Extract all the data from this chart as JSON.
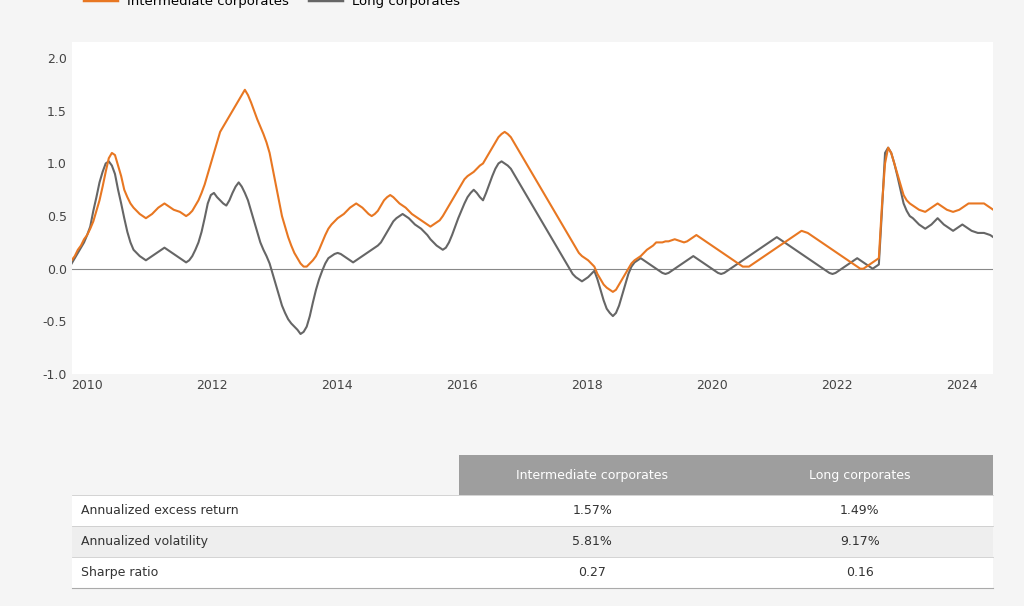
{
  "intermediate_corporates": [
    0.08,
    0.12,
    0.18,
    0.22,
    0.28,
    0.32,
    0.38,
    0.45,
    0.55,
    0.65,
    0.78,
    0.92,
    1.05,
    1.1,
    1.08,
    0.98,
    0.88,
    0.75,
    0.68,
    0.62,
    0.58,
    0.55,
    0.52,
    0.5,
    0.48,
    0.5,
    0.52,
    0.55,
    0.58,
    0.6,
    0.62,
    0.6,
    0.58,
    0.56,
    0.55,
    0.54,
    0.52,
    0.5,
    0.52,
    0.55,
    0.6,
    0.65,
    0.72,
    0.8,
    0.9,
    1.0,
    1.1,
    1.2,
    1.3,
    1.35,
    1.4,
    1.45,
    1.5,
    1.55,
    1.6,
    1.65,
    1.7,
    1.65,
    1.58,
    1.5,
    1.42,
    1.35,
    1.28,
    1.2,
    1.1,
    0.95,
    0.8,
    0.65,
    0.5,
    0.4,
    0.3,
    0.22,
    0.15,
    0.1,
    0.05,
    0.02,
    0.02,
    0.05,
    0.08,
    0.12,
    0.18,
    0.25,
    0.32,
    0.38,
    0.42,
    0.45,
    0.48,
    0.5,
    0.52,
    0.55,
    0.58,
    0.6,
    0.62,
    0.6,
    0.58,
    0.55,
    0.52,
    0.5,
    0.52,
    0.55,
    0.6,
    0.65,
    0.68,
    0.7,
    0.68,
    0.65,
    0.62,
    0.6,
    0.58,
    0.55,
    0.52,
    0.5,
    0.48,
    0.46,
    0.44,
    0.42,
    0.4,
    0.42,
    0.44,
    0.46,
    0.5,
    0.55,
    0.6,
    0.65,
    0.7,
    0.75,
    0.8,
    0.85,
    0.88,
    0.9,
    0.92,
    0.95,
    0.98,
    1.0,
    1.05,
    1.1,
    1.15,
    1.2,
    1.25,
    1.28,
    1.3,
    1.28,
    1.25,
    1.2,
    1.15,
    1.1,
    1.05,
    1.0,
    0.95,
    0.9,
    0.85,
    0.8,
    0.75,
    0.7,
    0.65,
    0.6,
    0.55,
    0.5,
    0.45,
    0.4,
    0.35,
    0.3,
    0.25,
    0.2,
    0.15,
    0.12,
    0.1,
    0.08,
    0.05,
    0.02,
    -0.05,
    -0.1,
    -0.15,
    -0.18,
    -0.2,
    -0.22,
    -0.2,
    -0.15,
    -0.1,
    -0.05,
    0.0,
    0.05,
    0.08,
    0.1,
    0.12,
    0.15,
    0.18,
    0.2,
    0.22,
    0.25,
    0.25,
    0.25,
    0.26,
    0.26,
    0.27,
    0.28,
    0.27,
    0.26,
    0.25,
    0.26,
    0.28,
    0.3,
    0.32,
    0.3,
    0.28,
    0.26,
    0.24,
    0.22,
    0.2,
    0.18,
    0.16,
    0.14,
    0.12,
    0.1,
    0.08,
    0.06,
    0.04,
    0.02,
    0.02,
    0.02,
    0.04,
    0.06,
    0.08,
    0.1,
    0.12,
    0.14,
    0.16,
    0.18,
    0.2,
    0.22,
    0.24,
    0.26,
    0.28,
    0.3,
    0.32,
    0.34,
    0.36,
    0.35,
    0.34,
    0.32,
    0.3,
    0.28,
    0.26,
    0.24,
    0.22,
    0.2,
    0.18,
    0.16,
    0.14,
    0.12,
    0.1,
    0.08,
    0.06,
    0.04,
    0.02,
    0.0,
    0.0,
    0.02,
    0.04,
    0.06,
    0.08,
    0.1,
    0.6,
    1.0,
    1.15,
    1.1,
    1.0,
    0.9,
    0.8,
    0.7,
    0.65,
    0.62,
    0.6,
    0.58,
    0.56,
    0.55,
    0.54,
    0.56,
    0.58,
    0.6,
    0.62,
    0.6,
    0.58,
    0.56,
    0.55,
    0.54,
    0.55,
    0.56,
    0.58,
    0.6,
    0.62,
    0.62,
    0.62,
    0.62,
    0.62,
    0.62,
    0.6,
    0.58,
    0.56
  ],
  "long_corporates": [
    0.05,
    0.1,
    0.15,
    0.2,
    0.25,
    0.32,
    0.4,
    0.55,
    0.68,
    0.82,
    0.92,
    1.0,
    1.02,
    0.98,
    0.9,
    0.75,
    0.62,
    0.48,
    0.35,
    0.25,
    0.18,
    0.15,
    0.12,
    0.1,
    0.08,
    0.1,
    0.12,
    0.14,
    0.16,
    0.18,
    0.2,
    0.18,
    0.16,
    0.14,
    0.12,
    0.1,
    0.08,
    0.06,
    0.08,
    0.12,
    0.18,
    0.25,
    0.35,
    0.48,
    0.62,
    0.7,
    0.72,
    0.68,
    0.65,
    0.62,
    0.6,
    0.65,
    0.72,
    0.78,
    0.82,
    0.78,
    0.72,
    0.65,
    0.55,
    0.45,
    0.35,
    0.25,
    0.18,
    0.12,
    0.05,
    -0.05,
    -0.15,
    -0.25,
    -0.35,
    -0.42,
    -0.48,
    -0.52,
    -0.55,
    -0.58,
    -0.62,
    -0.6,
    -0.55,
    -0.45,
    -0.32,
    -0.2,
    -0.1,
    -0.02,
    0.05,
    0.1,
    0.12,
    0.14,
    0.15,
    0.14,
    0.12,
    0.1,
    0.08,
    0.06,
    0.08,
    0.1,
    0.12,
    0.14,
    0.16,
    0.18,
    0.2,
    0.22,
    0.25,
    0.3,
    0.35,
    0.4,
    0.45,
    0.48,
    0.5,
    0.52,
    0.5,
    0.48,
    0.45,
    0.42,
    0.4,
    0.38,
    0.35,
    0.32,
    0.28,
    0.25,
    0.22,
    0.2,
    0.18,
    0.2,
    0.25,
    0.32,
    0.4,
    0.48,
    0.55,
    0.62,
    0.68,
    0.72,
    0.75,
    0.72,
    0.68,
    0.65,
    0.72,
    0.8,
    0.88,
    0.95,
    1.0,
    1.02,
    1.0,
    0.98,
    0.95,
    0.9,
    0.85,
    0.8,
    0.75,
    0.7,
    0.65,
    0.6,
    0.55,
    0.5,
    0.45,
    0.4,
    0.35,
    0.3,
    0.25,
    0.2,
    0.15,
    0.1,
    0.05,
    0.0,
    -0.05,
    -0.08,
    -0.1,
    -0.12,
    -0.1,
    -0.08,
    -0.05,
    -0.02,
    -0.1,
    -0.2,
    -0.3,
    -0.38,
    -0.42,
    -0.45,
    -0.42,
    -0.35,
    -0.25,
    -0.15,
    -0.05,
    0.02,
    0.06,
    0.08,
    0.1,
    0.08,
    0.06,
    0.04,
    0.02,
    0.0,
    -0.02,
    -0.04,
    -0.05,
    -0.04,
    -0.02,
    0.0,
    0.02,
    0.04,
    0.06,
    0.08,
    0.1,
    0.12,
    0.1,
    0.08,
    0.06,
    0.04,
    0.02,
    0.0,
    -0.02,
    -0.04,
    -0.05,
    -0.04,
    -0.02,
    0.0,
    0.02,
    0.04,
    0.06,
    0.08,
    0.1,
    0.12,
    0.14,
    0.16,
    0.18,
    0.2,
    0.22,
    0.24,
    0.26,
    0.28,
    0.3,
    0.28,
    0.26,
    0.24,
    0.22,
    0.2,
    0.18,
    0.16,
    0.14,
    0.12,
    0.1,
    0.08,
    0.06,
    0.04,
    0.02,
    0.0,
    -0.02,
    -0.04,
    -0.05,
    -0.04,
    -0.02,
    0.0,
    0.02,
    0.04,
    0.06,
    0.08,
    0.1,
    0.08,
    0.06,
    0.04,
    0.02,
    0.0,
    0.02,
    0.04,
    0.55,
    1.1,
    1.15,
    1.1,
    1.0,
    0.88,
    0.75,
    0.62,
    0.55,
    0.5,
    0.48,
    0.45,
    0.42,
    0.4,
    0.38,
    0.4,
    0.42,
    0.45,
    0.48,
    0.45,
    0.42,
    0.4,
    0.38,
    0.36,
    0.38,
    0.4,
    0.42,
    0.4,
    0.38,
    0.36,
    0.35,
    0.34,
    0.34,
    0.34,
    0.33,
    0.32,
    0.3
  ],
  "x_start_year": 2009.75,
  "x_end_year": 2024.5,
  "x_ticks": [
    2010,
    2012,
    2014,
    2016,
    2018,
    2020,
    2022,
    2024
  ],
  "y_ticks": [
    -1.0,
    -0.5,
    0.0,
    0.5,
    1.0,
    1.5,
    2.0
  ],
  "ylim": [
    -1.0,
    2.15
  ],
  "line_color_intermediate": "#E87722",
  "line_color_long": "#666666",
  "line_width": 1.5,
  "legend_label_intermediate": "Intermediate corporates",
  "legend_label_long": "Long corporates",
  "bg_color": "#f5f5f5",
  "plot_bg": "#ffffff",
  "table_header_bg": "#9e9e9e",
  "table_header_text": "#ffffff",
  "table_row1_bg": "#ffffff",
  "table_row2_bg": "#eeeeee",
  "table_row3_bg": "#ffffff",
  "table_metrics": [
    "Annualized excess return",
    "Annualized volatility",
    "Sharpe ratio"
  ],
  "table_intermediate_values": [
    "1.57%",
    "5.81%",
    "0.27"
  ],
  "table_long_values": [
    "1.49%",
    "9.17%",
    "0.16"
  ],
  "table_col_intermediate": "Intermediate corporates",
  "table_col_long": "Long corporates"
}
